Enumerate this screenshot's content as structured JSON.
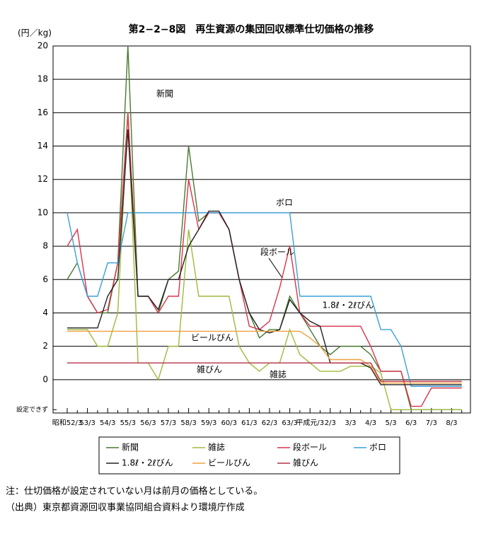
{
  "chart_data": {
    "type": "line",
    "title": "第2−2−8図　再生資源の集団回収標準仕切価格の推移",
    "y_label": "(円／kg)",
    "categories": [
      "昭和52/3",
      null,
      "53/3",
      null,
      "54/3",
      null,
      "55/3",
      null,
      "56/3",
      null,
      "57/3",
      null,
      "58/3",
      null,
      "59/3",
      null,
      "60/3",
      null,
      "61/3",
      null,
      "62/3",
      null,
      "63/3",
      null,
      "平成元/3",
      null,
      "2/3",
      null,
      "3/3",
      null,
      "4/3",
      null,
      "5/3",
      null,
      "6/3",
      null,
      "7/3",
      null,
      "8/3",
      null
    ],
    "series": [
      {
        "name": "新聞",
        "color": "#4a7a2e",
        "values": [
          6,
          7,
          5,
          4,
          4,
          7,
          20,
          5,
          5,
          4,
          6,
          6.5,
          14,
          9.5,
          10,
          10,
          9,
          6,
          4,
          2.5,
          3,
          3,
          5,
          4,
          3,
          2,
          1.5,
          2,
          2,
          2,
          1.5,
          0.5,
          0.5,
          0.5,
          -1.8,
          -1.8,
          -1.8,
          -1.8,
          -1.8,
          -1.8
        ]
      },
      {
        "name": "雑誌",
        "color": "#9dbb3c",
        "values": [
          3,
          3,
          3,
          2,
          2,
          4,
          16,
          1,
          1,
          0,
          2,
          2,
          9,
          5,
          5,
          5,
          5,
          2,
          1,
          0.5,
          1,
          1,
          3,
          1.5,
          1,
          0.5,
          0.5,
          0.5,
          0.8,
          0.8,
          0.8,
          0.4,
          -1.8,
          -1.8,
          -1.8,
          -1.8,
          -1.8,
          -1.8,
          -1.8,
          -1.8
        ]
      },
      {
        "name": "段ボール",
        "color": "#d9344a",
        "values": [
          8,
          9,
          5,
          4,
          4.2,
          7,
          16,
          5,
          5,
          4,
          5,
          5,
          12,
          9,
          10,
          10,
          9,
          6,
          3.2,
          3,
          3.5,
          5.5,
          8,
          4,
          3.2,
          3.2,
          3.2,
          3.2,
          3.2,
          3.2,
          2,
          0.5,
          0.5,
          0.5,
          -1.6,
          -1.6,
          -0.5,
          -0.5,
          -0.5,
          -0.5
        ]
      },
      {
        "name": "ボロ",
        "color": "#3aa0d8",
        "values": [
          10,
          7,
          5,
          5,
          7,
          7,
          10,
          10,
          10,
          10,
          10,
          10,
          10,
          10,
          10,
          10,
          10,
          10,
          10,
          10,
          10,
          10,
          10,
          5,
          5,
          5,
          5,
          5,
          5,
          5,
          5,
          3,
          3,
          2,
          -0.4,
          -0.4,
          -0.4,
          -0.4,
          -0.4,
          -0.4
        ]
      },
      {
        "name": "1.8ℓ・2ℓびん",
        "color": "#222222",
        "values": [
          3.1,
          3.1,
          3.1,
          3.1,
          5,
          6,
          15,
          5,
          5,
          4.2,
          6,
          6,
          8,
          9,
          10.1,
          10.1,
          9,
          6,
          4,
          3,
          2.8,
          3,
          4.8,
          4,
          3.5,
          3.2,
          1,
          1,
          1,
          1,
          0.7,
          -0.3,
          -0.3,
          -0.3,
          -0.3,
          -0.3,
          -0.3,
          -0.3,
          -0.3,
          -0.3
        ]
      },
      {
        "name": "ビールびん",
        "color": "#f0a040",
        "values": [
          2.9,
          2.9,
          2.9,
          2.9,
          2.9,
          2.9,
          2.9,
          2.9,
          2.9,
          2.9,
          2.9,
          2.9,
          2.9,
          2.9,
          2.9,
          2.9,
          2.9,
          2.9,
          2.9,
          2.9,
          2.9,
          2.9,
          2.9,
          2.9,
          2.5,
          2,
          1.2,
          1.2,
          1.2,
          1.2,
          0.8,
          -0.2,
          -0.2,
          -0.2,
          -0.2,
          -0.2,
          -0.2,
          -0.2,
          -0.2,
          -0.2
        ]
      },
      {
        "name": "雑びん",
        "color": "#b8304a",
        "values": [
          1,
          1,
          1,
          1,
          1,
          1,
          1,
          1,
          1,
          1,
          1,
          1,
          1,
          1,
          1,
          1,
          1,
          1,
          1,
          1,
          1,
          1,
          1,
          1,
          1,
          1,
          1,
          1,
          1,
          1,
          1,
          -0.1,
          -0.1,
          -0.1,
          -0.1,
          -0.1,
          -0.1,
          -0.1,
          -0.1,
          -0.1
        ]
      }
    ],
    "ylim": [
      -2,
      20
    ],
    "yticks": [
      {
        "value": -1.8,
        "label": "設定できず"
      },
      0,
      2,
      4,
      6,
      8,
      10,
      12,
      14,
      16,
      18,
      20
    ],
    "grid": true,
    "annotations": [
      "新聞",
      "ボロ",
      "段ボール",
      "1.8ℓ・2ℓびん",
      "ビールびん",
      "雑びん",
      "雑誌"
    ],
    "notes": [
      "注：仕切価格が設定されていない月は前月の価格としている。",
      "（出典）東京都資源回収事業協同組合資料より環境庁作成"
    ]
  }
}
